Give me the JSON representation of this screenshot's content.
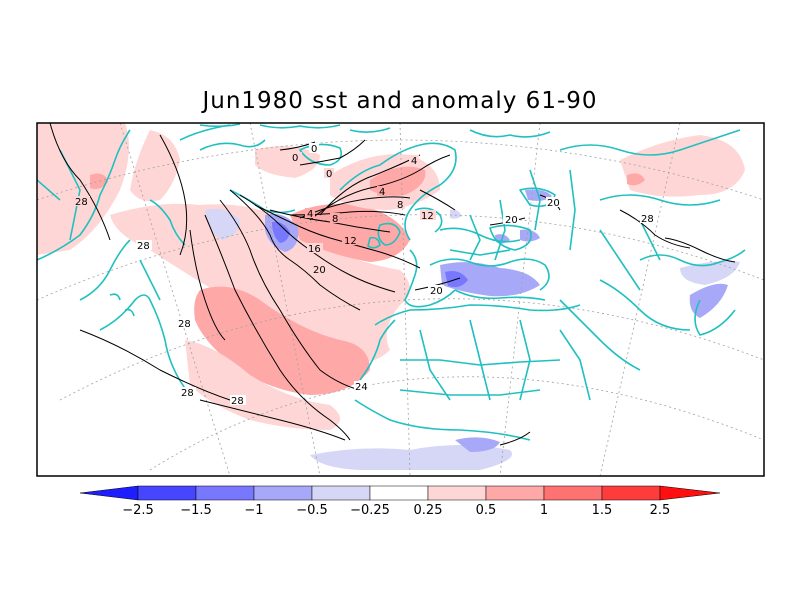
{
  "title": "Jun1980 sst and anomaly 61-90",
  "legend": {
    "type": "colorbar",
    "placement": "bottom",
    "boundaries": [
      -2.5,
      -1.5,
      -1,
      -0.5,
      -0.25,
      0.25,
      0.5,
      1,
      1.5,
      2.5
    ],
    "tick_labels": [
      "−2.5",
      "−1.5",
      "−1",
      "−0.5",
      "−0.25",
      "0.25",
      "0.5",
      "1",
      "1.5",
      "2.5"
    ],
    "colors": [
      "#1e1eff",
      "#4646ff",
      "#7878ff",
      "#a8a8f8",
      "#d6d6f6",
      "#ffffff",
      "#ffd6d6",
      "#ffa8a8",
      "#ff7272",
      "#ff3c3c",
      "#ff1010"
    ]
  },
  "map": {
    "projection": "polar-stereographic-sector",
    "colors": {
      "coastline": "#20c0c0",
      "contour": "#000000",
      "graticule": "#a0a0a0",
      "frame": "#000000"
    },
    "contour_labels": [
      "0",
      "0",
      "0",
      "4",
      "4",
      "4",
      "8",
      "8",
      "12",
      "12",
      "16",
      "20",
      "20",
      "20",
      "20",
      "24",
      "28",
      "28",
      "28",
      "28",
      "28",
      "28"
    ]
  }
}
